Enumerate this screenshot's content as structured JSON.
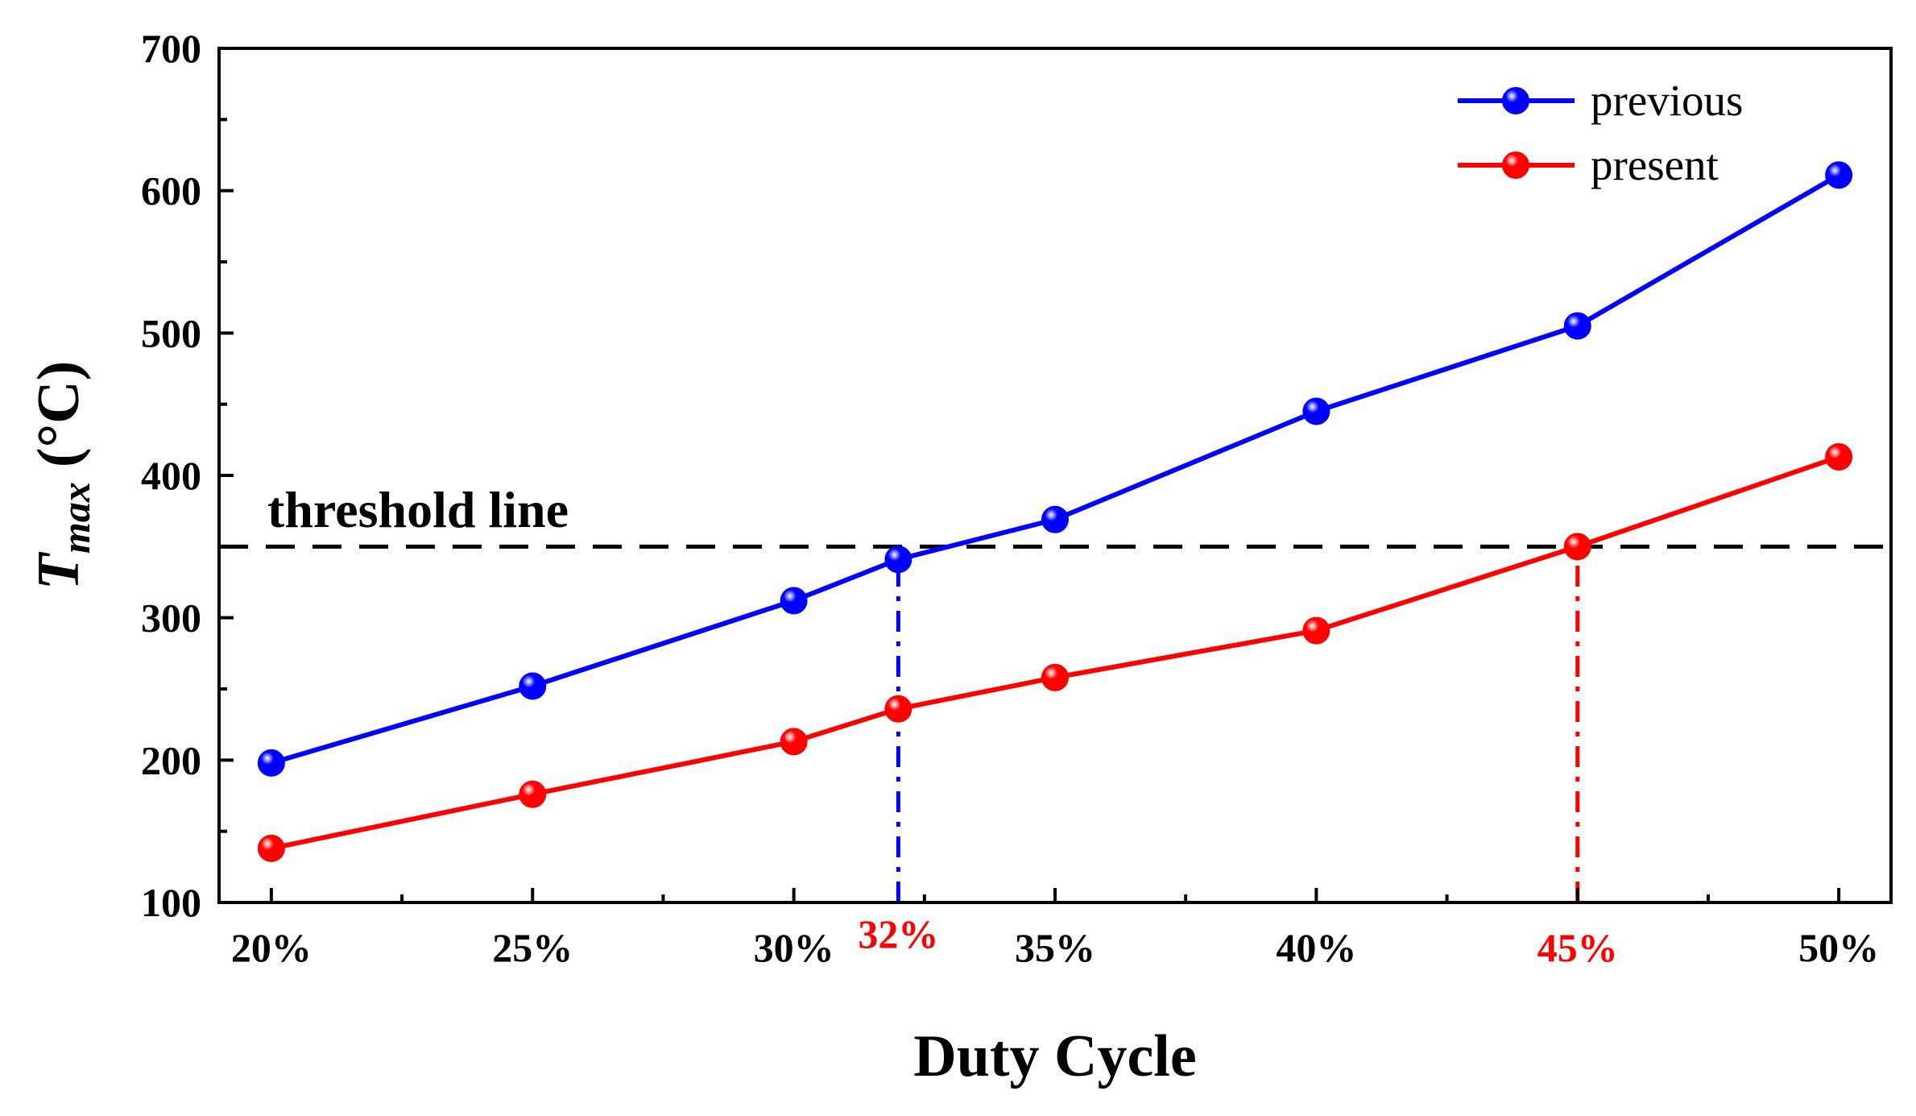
{
  "chart_data": {
    "type": "line",
    "title": "",
    "xlabel": "Duty Cycle",
    "ylabel": {
      "symbol": "T",
      "subscript": "max",
      "unit": "(°C)"
    },
    "x_domain": [
      19,
      51
    ],
    "ylim": [
      100,
      700
    ],
    "x_ticks": [
      {
        "value": 20,
        "label": "20%"
      },
      {
        "value": 25,
        "label": "25%"
      },
      {
        "value": 30,
        "label": "30%"
      },
      {
        "value": 35,
        "label": "35%"
      },
      {
        "value": 40,
        "label": "40%"
      },
      {
        "value": 50,
        "label": "50%"
      }
    ],
    "x_ticks_highlight": [
      {
        "value": 32,
        "label": "32%",
        "color": "#ff0000"
      },
      {
        "value": 45,
        "label": "45%",
        "color": "#ff0000"
      }
    ],
    "y_ticks": [
      100,
      200,
      300,
      400,
      500,
      600,
      700
    ],
    "series": [
      {
        "name": "previous",
        "color": "#0000ff",
        "x": [
          20,
          25,
          30,
          32,
          35,
          40,
          45,
          50
        ],
        "values": [
          198,
          252,
          312,
          341,
          369,
          445,
          505,
          611
        ]
      },
      {
        "name": "present",
        "color": "#ff0000",
        "x": [
          20,
          25,
          30,
          32,
          35,
          40,
          45,
          50
        ],
        "values": [
          138,
          176,
          213,
          236,
          258,
          291,
          350,
          413
        ]
      }
    ],
    "threshold": {
      "label": "threshold line",
      "value": 350,
      "color": "#000000"
    },
    "markers": [
      {
        "x": 32,
        "from": 100,
        "to": 341,
        "color": "#0000ff"
      },
      {
        "x": 45,
        "from": 100,
        "to": 350,
        "color": "#ff0000"
      }
    ],
    "legend": {
      "placement": "top-right"
    }
  }
}
